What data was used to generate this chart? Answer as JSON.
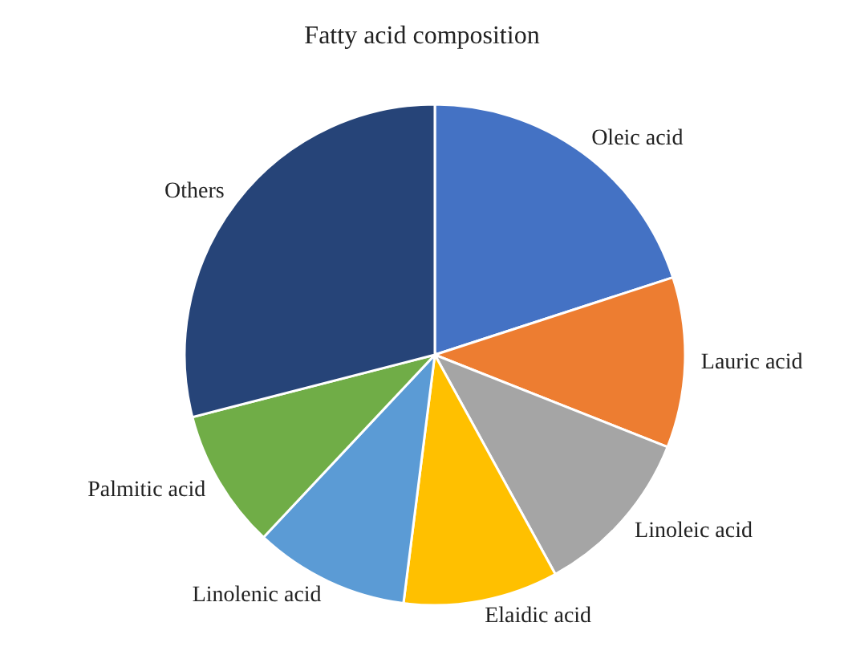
{
  "chart_data": {
    "type": "pie",
    "title": "Fatty acid composition",
    "categories": [
      "Oleic acid",
      "Lauric acid",
      "Linoleic acid",
      "Elaidic acid",
      "Linolenic acid",
      "Palmitic acid",
      "Others"
    ],
    "values": [
      20,
      11,
      11,
      10,
      10,
      9,
      29
    ],
    "colors": [
      "#4472c4",
      "#ed7d31",
      "#a5a5a5",
      "#ffc000",
      "#5b9bd5",
      "#70ad47",
      "#264478"
    ],
    "legend": false
  }
}
